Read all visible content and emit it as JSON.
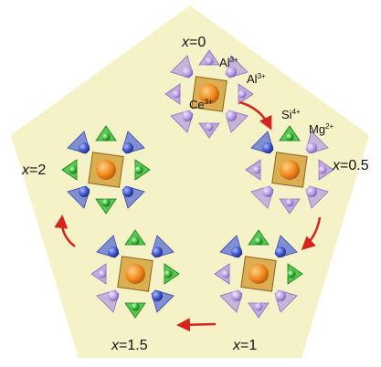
{
  "diagram": {
    "background_color": "#f4f2c6",
    "stages": [
      {
        "x_label": "x",
        "value": "=0",
        "green_sites": 0
      },
      {
        "x_label": "x",
        "value": "=0.5",
        "green_sites": 1
      },
      {
        "x_label": "x",
        "value": "=1",
        "green_sites": 2
      },
      {
        "x_label": "x",
        "value": "=1.5",
        "green_sites": 3
      },
      {
        "x_label": "x",
        "value": "=2",
        "green_sites": 4
      }
    ],
    "ion_labels": {
      "al_1": "Al",
      "al_1_charge": "3+",
      "al_2": "Al",
      "al_2_charge": "3+",
      "ce": "Ce",
      "ce_charge": "3+",
      "si": "Si",
      "si_charge": "4+",
      "mg": "Mg",
      "mg_charge": "2+"
    },
    "colors": {
      "arrow": "#d4241c",
      "center_orange": "#f08a1c",
      "center_box": "#d6a23c",
      "purple": "#b89fdc",
      "purple_dark": "#8b6fc8",
      "blue": "#5a6ed6",
      "green": "#3bbf3b"
    }
  }
}
